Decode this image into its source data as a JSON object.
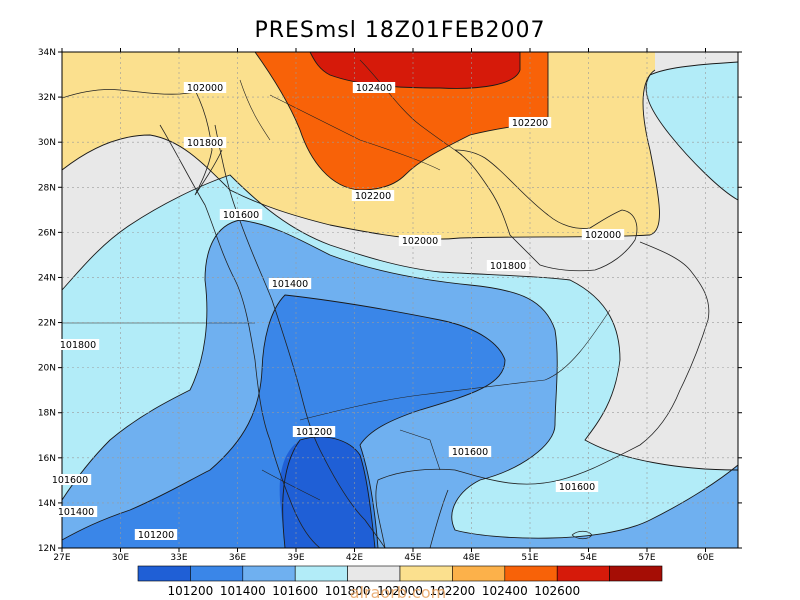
{
  "title": "PRESmsl  18Z01FEB2007",
  "watermark": "alraorb.com",
  "axes": {
    "lat_ticks": [
      "34N",
      "32N",
      "30N",
      "28N",
      "26N",
      "24N",
      "22N",
      "20N",
      "18N",
      "16N",
      "14N",
      "12N"
    ],
    "lon_ticks": [
      "27E",
      "30E",
      "33E",
      "36E",
      "39E",
      "42E",
      "45E",
      "48E",
      "51E",
      "54E",
      "57E",
      "60E"
    ]
  },
  "contour_labels": [
    "102000",
    "101800",
    "102400",
    "102200",
    "102200",
    "101600",
    "102000",
    "102000",
    "101800",
    "101400",
    "101800",
    "101200",
    "101600",
    "101600",
    "101600",
    "101400",
    "101200"
  ],
  "colorbar": {
    "colors": [
      "#1f5fd6",
      "#3a86e8",
      "#6fb0f0",
      "#b2ecf8",
      "#e8e8e8",
      "#fbe08e",
      "#fcb14a",
      "#f86208",
      "#d61a0a",
      "#a50d05"
    ],
    "labels": [
      "101200",
      "101400",
      "101600",
      "101800",
      "102000",
      "102200",
      "102400",
      "102600"
    ]
  }
}
